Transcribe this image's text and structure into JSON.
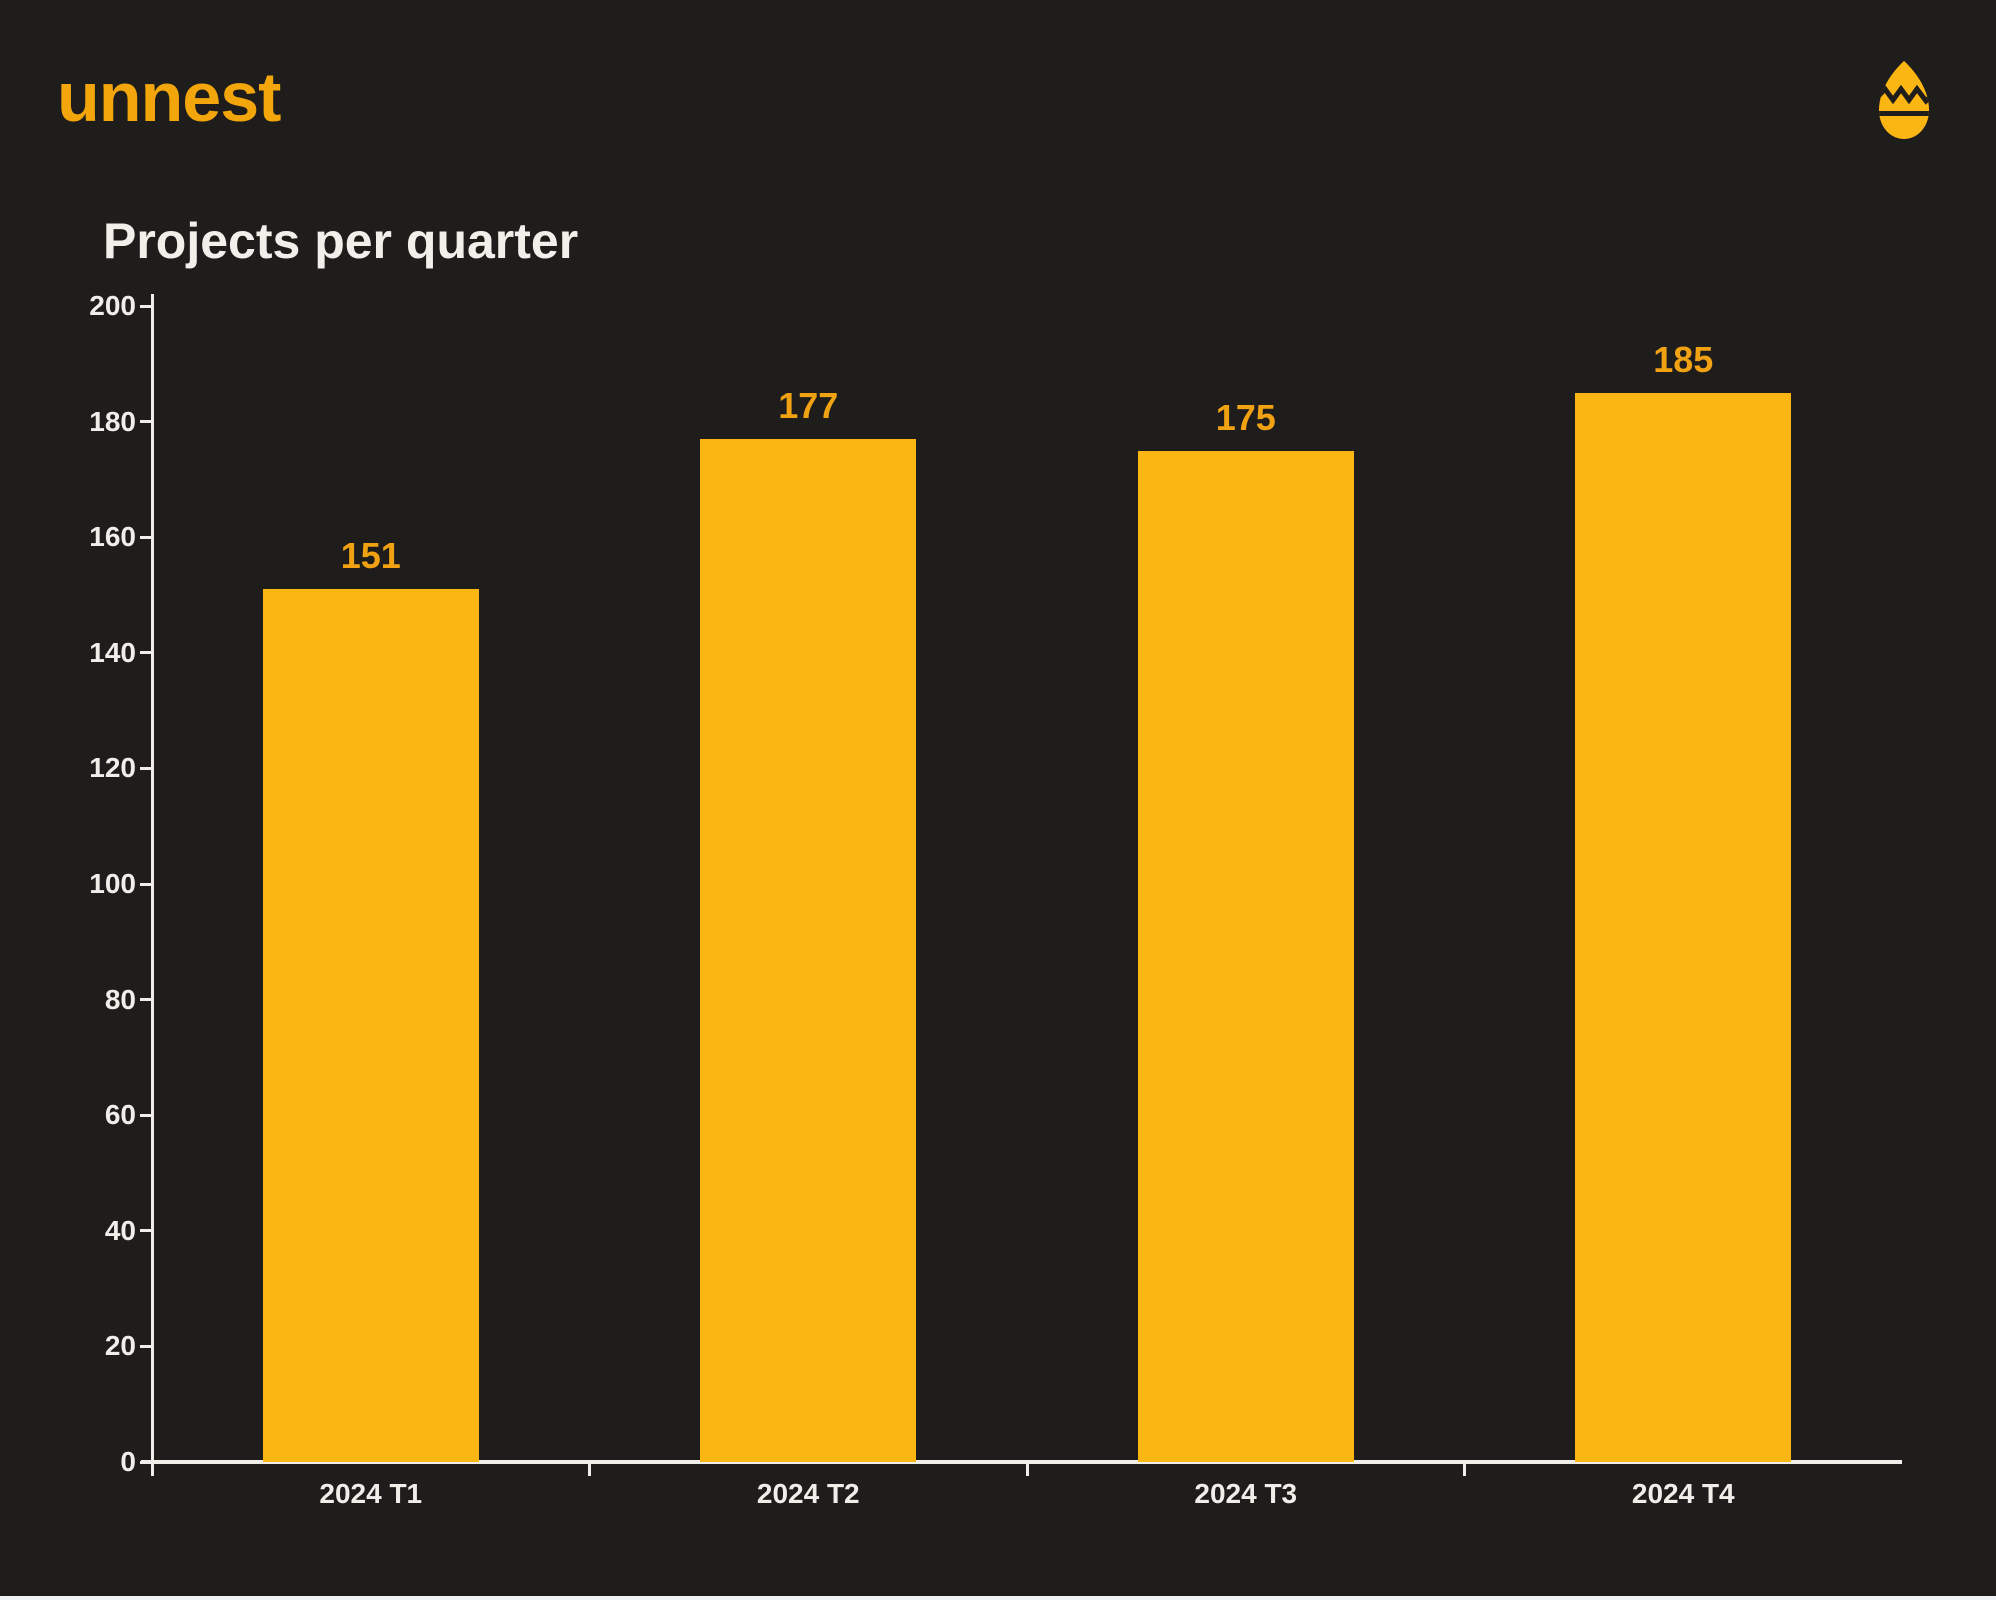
{
  "brand": {
    "logo_text": "unnest",
    "logo_color": "#f2a60b",
    "egg_icon": "egg-icon",
    "egg_icon_color": "#fcb614"
  },
  "chart_data": {
    "type": "bar",
    "title": "Projects per quarter",
    "categories": [
      "2024 T1",
      "2024 T2",
      "2024 T3",
      "2024 T4"
    ],
    "values": [
      151,
      177,
      175,
      185
    ],
    "value_labels": [
      "151",
      "177",
      "175",
      "185"
    ],
    "xlabel": "",
    "ylabel": "",
    "ylim": [
      0,
      200
    ],
    "y_ticks": [
      0,
      20,
      40,
      60,
      80,
      100,
      120,
      140,
      160,
      180,
      200
    ],
    "grid": false,
    "legend": "none",
    "bar_color": "#fcb614",
    "value_label_color": "#f0a213",
    "axis_color": "#f0eee8",
    "background_color": "#1e1d1b"
  }
}
